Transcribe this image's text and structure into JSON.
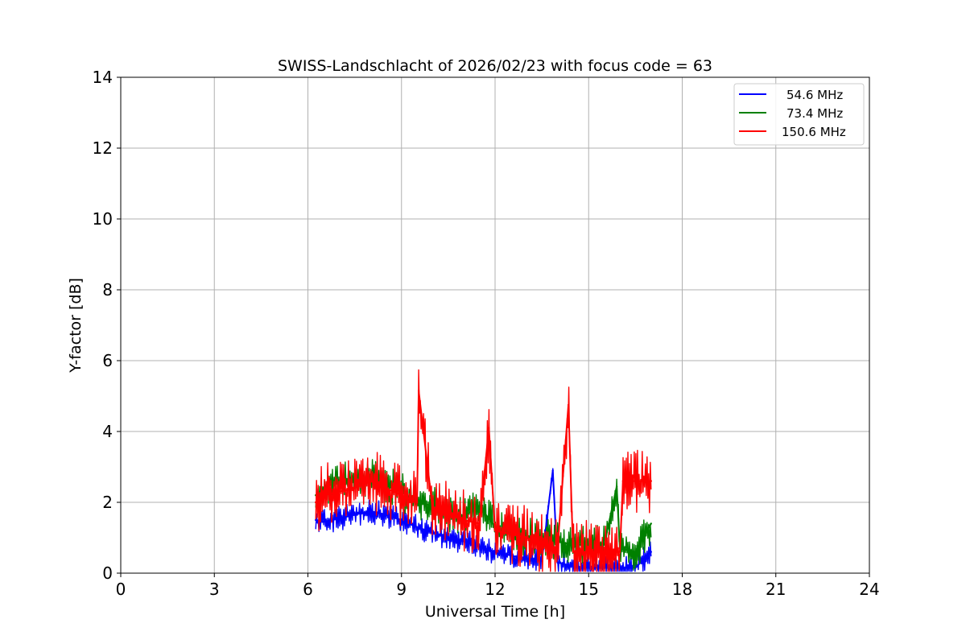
{
  "chart_data": {
    "type": "line",
    "title": "SWISS-Landschlacht of 2026/02/23 with focus code = 63",
    "xlabel": "Universal Time [h]",
    "ylabel": "Y-factor [dB]",
    "xlim": [
      0,
      24
    ],
    "ylim": [
      0,
      14
    ],
    "xticks": [
      "0",
      "3",
      "6",
      "9",
      "12",
      "15",
      "18",
      "21",
      "24"
    ],
    "yticks": [
      "0",
      "2",
      "4",
      "6",
      "8",
      "10",
      "12",
      "14"
    ],
    "grid": true,
    "legend_position": "top-right",
    "series": [
      {
        "name": "54.6 MHz",
        "color": "#0000ff",
        "x": [
          6.25,
          6.5,
          7.0,
          7.5,
          8.0,
          8.5,
          9.0,
          9.5,
          10.0,
          10.5,
          11.0,
          11.5,
          12.0,
          12.5,
          13.0,
          13.5,
          13.85,
          14.0,
          14.5,
          15.0,
          15.5,
          16.0,
          16.5,
          17.0
        ],
        "y": [
          1.5,
          1.45,
          1.55,
          1.65,
          1.75,
          1.65,
          1.5,
          1.3,
          1.15,
          1.0,
          0.9,
          0.75,
          0.6,
          0.5,
          0.4,
          0.35,
          2.9,
          0.3,
          0.2,
          0.15,
          0.15,
          0.15,
          0.15,
          0.6
        ]
      },
      {
        "name": "73.4 MHz",
        "color": "#008000",
        "x": [
          6.25,
          6.5,
          7.0,
          7.5,
          8.0,
          8.5,
          9.0,
          9.5,
          10.0,
          10.5,
          11.0,
          11.5,
          12.0,
          12.5,
          13.0,
          13.5,
          14.0,
          14.5,
          15.0,
          15.5,
          15.9,
          16.0,
          16.5,
          17.0
        ],
        "y": [
          2.2,
          2.4,
          2.6,
          2.7,
          2.7,
          2.5,
          2.3,
          2.0,
          1.9,
          1.7,
          1.6,
          1.9,
          1.3,
          1.1,
          1.0,
          1.0,
          0.9,
          0.8,
          0.8,
          0.8,
          2.45,
          0.7,
          0.6,
          1.4
        ]
      },
      {
        "name": "150.6 MHz",
        "color": "#ff0000",
        "x": [
          6.25,
          6.5,
          7.0,
          7.5,
          8.0,
          8.5,
          9.0,
          9.5,
          9.55,
          10.0,
          10.5,
          11.0,
          11.5,
          11.8,
          12.0,
          12.5,
          13.0,
          13.5,
          14.0,
          14.35,
          14.5,
          15.0,
          15.5,
          16.0,
          16.1,
          16.5,
          17.0
        ],
        "y": [
          2.0,
          2.2,
          2.3,
          2.4,
          2.6,
          2.4,
          2.2,
          2.0,
          5.15,
          1.8,
          1.7,
          1.5,
          1.4,
          4.1,
          1.2,
          1.1,
          1.0,
          0.8,
          0.7,
          4.75,
          0.6,
          0.6,
          0.6,
          0.6,
          2.6,
          2.6,
          2.6
        ]
      }
    ]
  }
}
